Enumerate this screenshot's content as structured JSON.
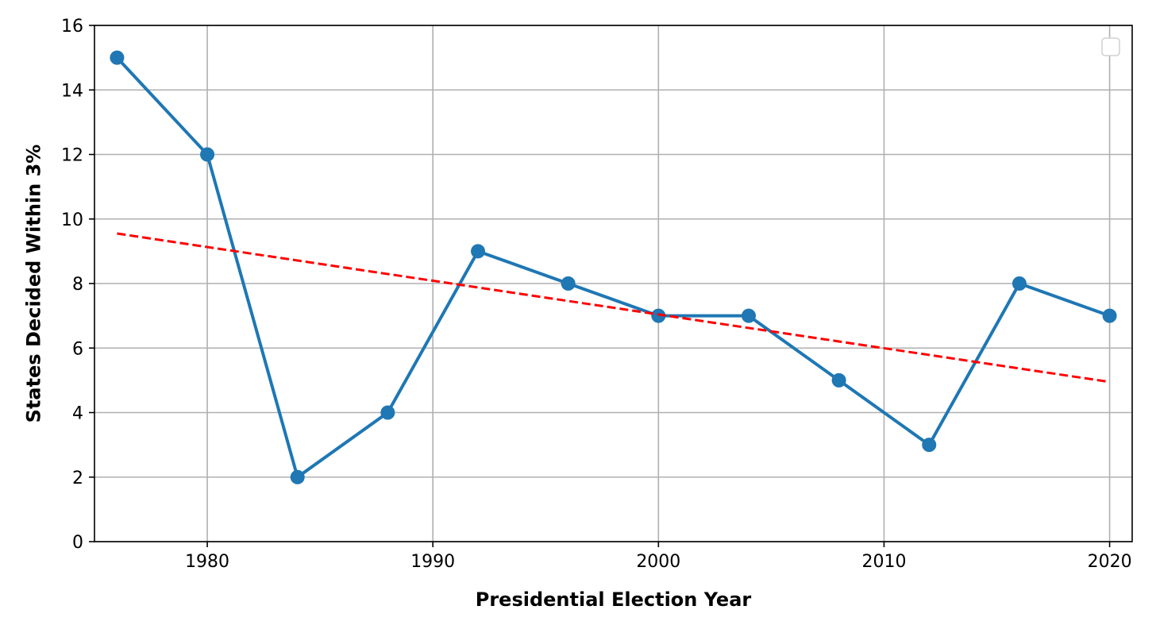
{
  "chart_data": {
    "type": "line",
    "title": "",
    "xlabel": "Presidential Election Year",
    "ylabel": "States Decided Within 3%",
    "xlim": [
      1975,
      2021
    ],
    "ylim": [
      0,
      16
    ],
    "xticks": [
      1980,
      1990,
      2000,
      2010,
      2020
    ],
    "yticks": [
      0,
      2,
      4,
      6,
      8,
      10,
      12,
      14,
      16
    ],
    "grid": true,
    "legend": "top-right (empty)",
    "series": [
      {
        "type": "line-markers",
        "color": "#1f77b4",
        "x": [
          1976,
          1980,
          1984,
          1988,
          1992,
          1996,
          2000,
          2004,
          2008,
          2012,
          2016,
          2020
        ],
        "y": [
          15,
          12,
          2,
          4,
          9,
          8,
          7,
          7,
          5,
          3,
          8,
          7
        ]
      },
      {
        "type": "trend-dashed",
        "color": "#ff0000",
        "x": [
          1976,
          2020
        ],
        "y": [
          9.55,
          4.95
        ]
      }
    ]
  }
}
